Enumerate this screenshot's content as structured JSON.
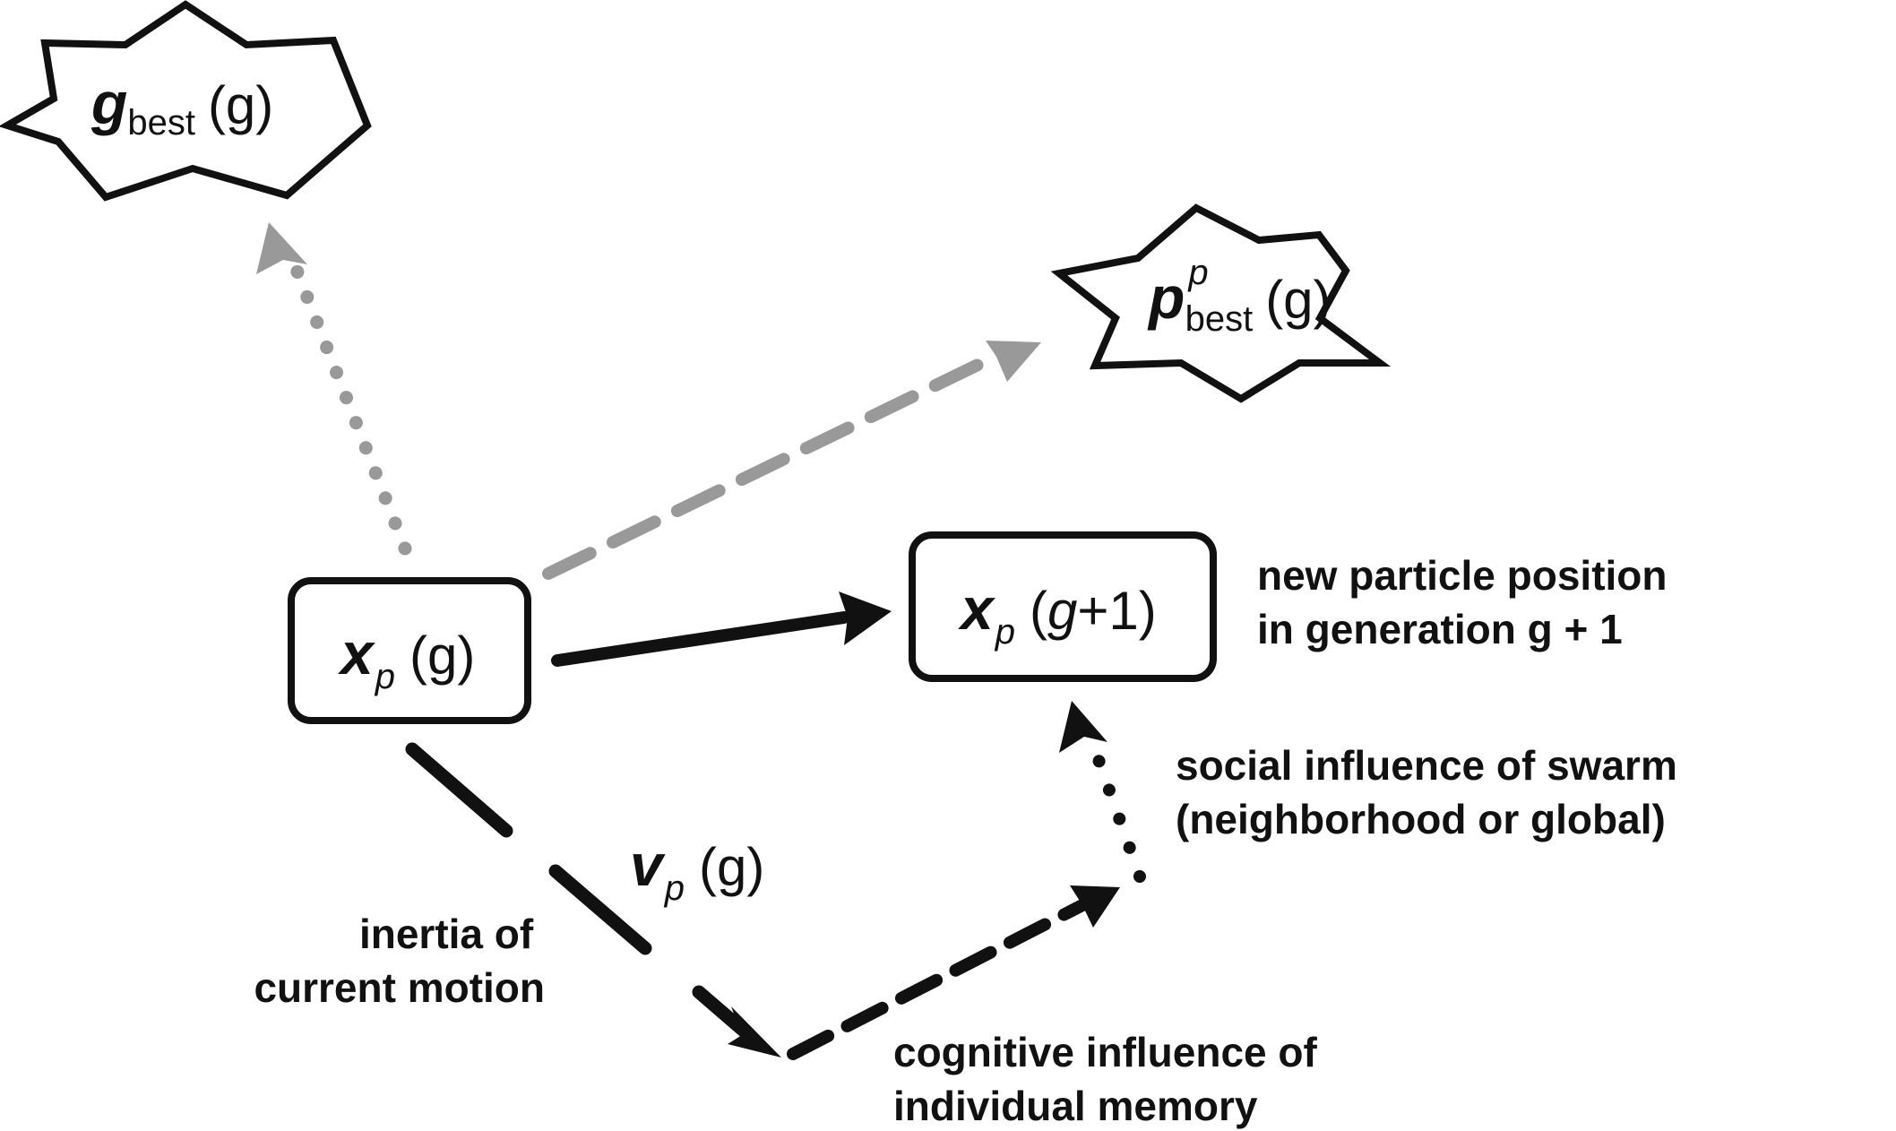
{
  "nodes": {
    "gbest": {
      "sym": "g",
      "sub": "best",
      "arg": "(g)"
    },
    "pbest": {
      "sym": "p",
      "sup": "p",
      "sub": "best",
      "arg": "(g)"
    },
    "current": {
      "sym": "x",
      "sub": "p",
      "arg": "(g)"
    },
    "next": {
      "sym": "x",
      "sub": "p",
      "arg_open": "(",
      "arg_g": "g",
      "arg_close": "+1)"
    },
    "velocity": {
      "sym": "v",
      "sub": "p",
      "arg": "(g)"
    }
  },
  "labels": {
    "new_position": [
      "new particle position",
      "in generation g + 1"
    ],
    "social": [
      "social influence of swarm",
      "(neighborhood or global)"
    ],
    "inertia": [
      "inertia of",
      "current motion"
    ],
    "cognitive": [
      "cognitive influence of",
      "individual memory"
    ]
  },
  "colors": {
    "stroke": "#111111",
    "gray": "#999999"
  }
}
